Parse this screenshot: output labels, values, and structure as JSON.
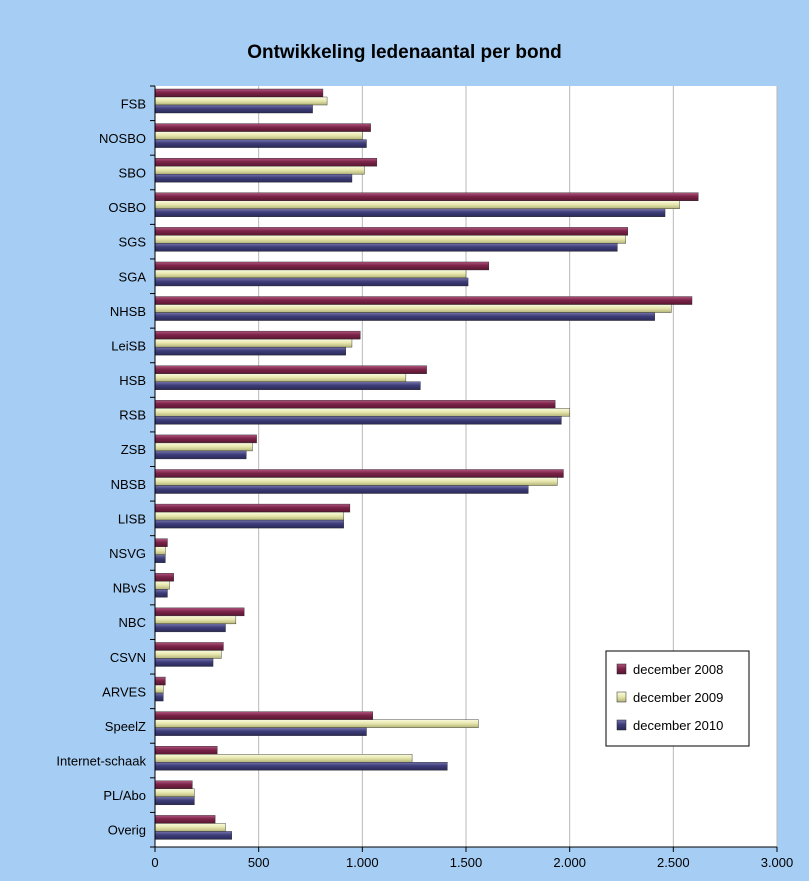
{
  "chart_data": {
    "type": "bar",
    "orientation": "horizontal",
    "title": "Ontwikkeling ledenaantal per bond",
    "categories": [
      "FSB",
      "NOSBO",
      "SBO",
      "OSBO",
      "SGS",
      "SGA",
      "NHSB",
      "LeiSB",
      "HSB",
      "RSB",
      "ZSB",
      "NBSB",
      "LISB",
      "NSVG",
      "NBvS",
      "NBC",
      "CSVN",
      "ARVES",
      "SpeelZ",
      "Internet-schaak",
      "PL/Abo",
      "Overig"
    ],
    "series": [
      {
        "name": "december 2008",
        "color": "#7b2448",
        "values": [
          810,
          1040,
          1070,
          2620,
          2280,
          1610,
          2590,
          990,
          1310,
          1930,
          490,
          1970,
          940,
          60,
          90,
          430,
          330,
          50,
          1050,
          300,
          180,
          290
        ]
      },
      {
        "name": "december 2009",
        "color": "#e8e8b0",
        "values": [
          830,
          1000,
          1010,
          2530,
          2270,
          1500,
          2490,
          950,
          1210,
          2000,
          470,
          1940,
          910,
          50,
          70,
          390,
          320,
          40,
          1560,
          1240,
          190,
          340
        ]
      },
      {
        "name": "december 2010",
        "color": "#3e3d79",
        "values": [
          760,
          1020,
          950,
          2460,
          2230,
          1510,
          2410,
          920,
          1280,
          1960,
          440,
          1800,
          910,
          50,
          60,
          340,
          280,
          40,
          1020,
          1410,
          190,
          370
        ]
      }
    ],
    "xlim": [
      0,
      3000
    ],
    "xticks": [
      0,
      500,
      1000,
      1500,
      2000,
      2500,
      3000
    ],
    "xtick_labels": [
      "0",
      "500",
      "1.000",
      "1.500",
      "2.000",
      "2.500",
      "3.000"
    ],
    "grid": true,
    "legend_position": "bottom-right"
  }
}
